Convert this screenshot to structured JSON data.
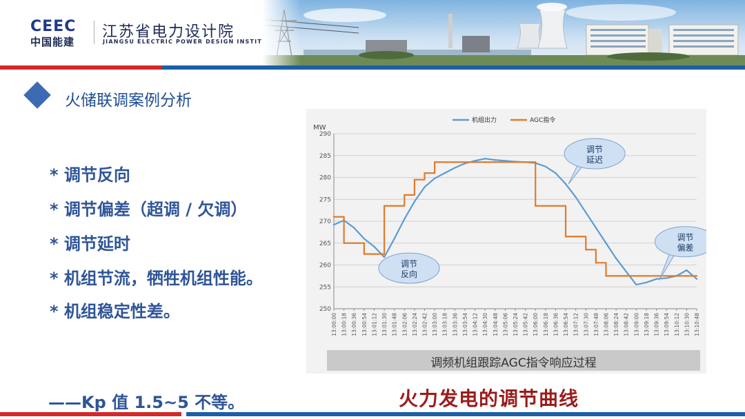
{
  "header": {
    "logo_mark": "CEEC",
    "logo_sub": "中国能建",
    "org_name": "江苏省电力设计院",
    "org_name_en": "JIANGSU ELECTRIC POWER DESIGN INSTITUTE"
  },
  "section_title": "火储联调案例分析",
  "bullets": [
    "* 调节反向",
    "* 调节偏差（超调 / 欠调）",
    "* 调节延时",
    "* 机组节流，牺牲机组性能。",
    "* 机组稳定性差。"
  ],
  "kp_note": "——Kp 值 1.5~5 不等。",
  "figure_title": "火力发电的调节曲线",
  "colors": {
    "brand_blue": "#1b5fa8",
    "brand_red": "#d62828",
    "unit_output": "#5b9bd5",
    "agc_command": "#e07b2c"
  },
  "chart_data": {
    "type": "line",
    "title": "",
    "ylabel": "MW",
    "xlabel": "",
    "ylim": [
      250,
      290
    ],
    "yticks": [
      250,
      255,
      260,
      265,
      270,
      275,
      280,
      285,
      290
    ],
    "legend_position": "top-center",
    "caption": "调频机组跟踪AGC指令响应过程",
    "x": [
      "13:00:00",
      "13:00:18",
      "13:00:36",
      "13:00:54",
      "13:01:12",
      "13:01:30",
      "13:01:48",
      "13:02:06",
      "13:02:24",
      "13:02:42",
      "13:03:00",
      "13:03:18",
      "13:03:36",
      "13:03:54",
      "13:04:12",
      "13:04:30",
      "13:04:48",
      "13:05:06",
      "13:05:24",
      "13:05:42",
      "13:06:00",
      "13:06:18",
      "13:06:36",
      "13:06:54",
      "13:07:12",
      "13:07:30",
      "13:07:48",
      "13:08:06",
      "13:08:24",
      "13:08:42",
      "13:09:00",
      "13:09:18",
      "13:09:36",
      "13:09:54",
      "13:10:12",
      "13:10:30",
      "13:10:48"
    ],
    "series": [
      {
        "name": "机组出力",
        "color": "#5b9bd5",
        "values": [
          269.2,
          270.2,
          268.5,
          266.0,
          264.2,
          261.8,
          266.0,
          270.5,
          274.5,
          277.8,
          279.8,
          281.0,
          282.2,
          283.2,
          283.8,
          284.3,
          284.0,
          283.8,
          283.6,
          283.5,
          283.3,
          282.5,
          281.0,
          278.5,
          275.5,
          272.0,
          268.5,
          265.0,
          261.5,
          258.5,
          255.5,
          256.0,
          256.8,
          257.0,
          257.5,
          258.8,
          256.8
        ]
      },
      {
        "name": "AGC指令",
        "color": "#e07b2c",
        "values": [
          271.0,
          265.0,
          265.0,
          262.5,
          262.5,
          273.5,
          273.5,
          276.0,
          279.5,
          281.0,
          283.5,
          283.5,
          283.5,
          283.5,
          283.5,
          283.5,
          283.5,
          283.5,
          283.5,
          283.5,
          273.5,
          273.5,
          273.5,
          266.5,
          266.5,
          263.5,
          260.5,
          257.5,
          257.5,
          257.5,
          257.5,
          257.5,
          257.5,
          257.5,
          257.5,
          257.5,
          257.5
        ]
      }
    ],
    "annotations": [
      {
        "text": "调节反向",
        "x": "13:01:30",
        "y": 261.8
      },
      {
        "text": "调节延迟",
        "x": "13:06:54",
        "y": 278.5
      },
      {
        "text": "调节偏差",
        "x": "13:09:36",
        "y": 256.5
      }
    ]
  }
}
